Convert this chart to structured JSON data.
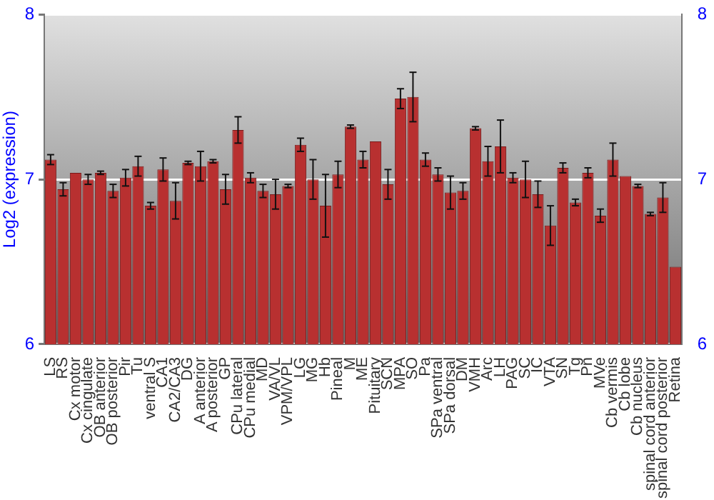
{
  "chart_data": {
    "type": "bar",
    "ylabel": "Log2 (expression)",
    "categories": [
      "LS",
      "RS",
      "Cx motor",
      "Cx cingulate",
      "OB anterior",
      "OB posterior",
      "Pir",
      "Tu",
      "ventral S",
      "CA1",
      "CA2/CA3",
      "DG",
      "A anterior",
      "A posterior",
      "GP",
      "CPu lateral",
      "CPu medial",
      "MD",
      "VA/VL",
      "VPM/VPL",
      "LG",
      "MG",
      "Hb",
      "Pineal",
      "M",
      "ME",
      "Pituitary",
      "SCN",
      "MPA",
      "SO",
      "Pa",
      "SPa ventral",
      "SPa dorsal",
      "DM",
      "VMH",
      "Arc",
      "LH",
      "PAG",
      "SC",
      "IC",
      "VTA",
      "SN",
      "Tg",
      "Pn",
      "MVe",
      "Cb vermis",
      "Cb lobe",
      "Cb nucleus",
      "spinal cord anterior",
      "spinal cord posterior",
      "Retina"
    ],
    "values": [
      7.12,
      6.94,
      7.04,
      7.0,
      7.04,
      6.93,
      7.01,
      7.08,
      6.84,
      7.06,
      6.87,
      7.1,
      7.08,
      7.11,
      6.94,
      7.3,
      7.01,
      6.93,
      6.91,
      6.96,
      7.21,
      7.0,
      6.84,
      7.03,
      7.32,
      7.12,
      7.23,
      6.97,
      7.49,
      7.5,
      7.12,
      7.03,
      6.92,
      6.93,
      7.31,
      7.11,
      7.2,
      7.01,
      7.0,
      6.91,
      6.72,
      7.07,
      6.86,
      7.04,
      6.78,
      7.12,
      7.02,
      6.96,
      6.79,
      6.89,
      6.47
    ],
    "errors": [
      0.03,
      0.04,
      null,
      0.03,
      0.01,
      0.04,
      0.05,
      0.06,
      0.02,
      0.07,
      0.11,
      0.01,
      0.09,
      0.01,
      0.09,
      0.08,
      0.03,
      0.04,
      0.09,
      0.01,
      0.04,
      0.12,
      0.19,
      0.08,
      0.01,
      0.05,
      null,
      0.09,
      0.06,
      0.15,
      0.04,
      0.04,
      0.1,
      0.05,
      0.01,
      0.09,
      0.16,
      0.03,
      0.11,
      0.08,
      0.12,
      0.03,
      0.02,
      0.03,
      0.04,
      0.1,
      null,
      0.01,
      0.01,
      0.09,
      null
    ],
    "color": "#b83030",
    "ylim": [
      6,
      8
    ],
    "yticks": [
      6,
      7,
      8
    ],
    "y2lim": [
      6,
      8
    ],
    "y2ticks": [
      6,
      7,
      8
    ],
    "grid": "y",
    "legend": false
  }
}
